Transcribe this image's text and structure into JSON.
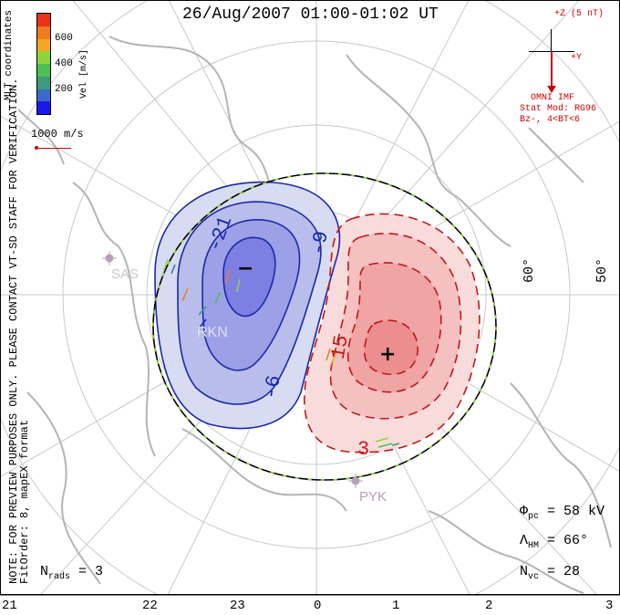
{
  "title": "26/Aug/2007 01:00-01:02 UT",
  "colorbar": {
    "unit_label": "Vel [m/s]",
    "ticks": [
      "600",
      "400",
      "200"
    ],
    "colors": [
      "#e8331a",
      "#f07c1e",
      "#f5a623",
      "#8fd43a",
      "#4bbf52",
      "#3d9b7a",
      "#3a6cc7",
      "#1a1ae8"
    ]
  },
  "coords_label": "MLT coordinates",
  "vector_scale": "1000 m/s",
  "imf": {
    "top_label": "+Z (5 nT)",
    "y_label": "+Y",
    "source": "OMNI IMF",
    "model_line1": "Stat Mod: RG96",
    "model_line2": "Bz-, 4<BT<6",
    "color": "#cc0000"
  },
  "watermark": "NOTE: FOR PREVIEW PURPOSES ONLY. PLEASE CONTACT VT-SD STAFF FOR VERIFICATION.",
  "fit_info": "FitOrder: 8, mapEX format",
  "latitude_labels": [
    "60°",
    "50°"
  ],
  "mlt_labels": [
    "21",
    "22",
    "23",
    "0",
    "1",
    "2",
    "3"
  ],
  "contour_labels": {
    "neg_outer": "-6",
    "neg_inner": "-21",
    "neg_mid": "-9",
    "pos_mid": "15",
    "pos_outer": "3"
  },
  "extrema": {
    "min_marker": "−",
    "max_marker": "+"
  },
  "radars": [
    "SAS",
    "RKN",
    "PYK"
  ],
  "stats": {
    "phi_pc": "Φ",
    "phi_sub": "pc",
    "phi_val": " = 58 kV",
    "lambda": "Λ",
    "lambda_sub": "HM",
    "lambda_val": " = 66°",
    "n_vc": "N",
    "n_vc_sub": "vc",
    "n_vc_val": " = 28",
    "n_rads": "N",
    "n_rads_sub": "rads",
    "n_rads_val": " = 3"
  }
}
